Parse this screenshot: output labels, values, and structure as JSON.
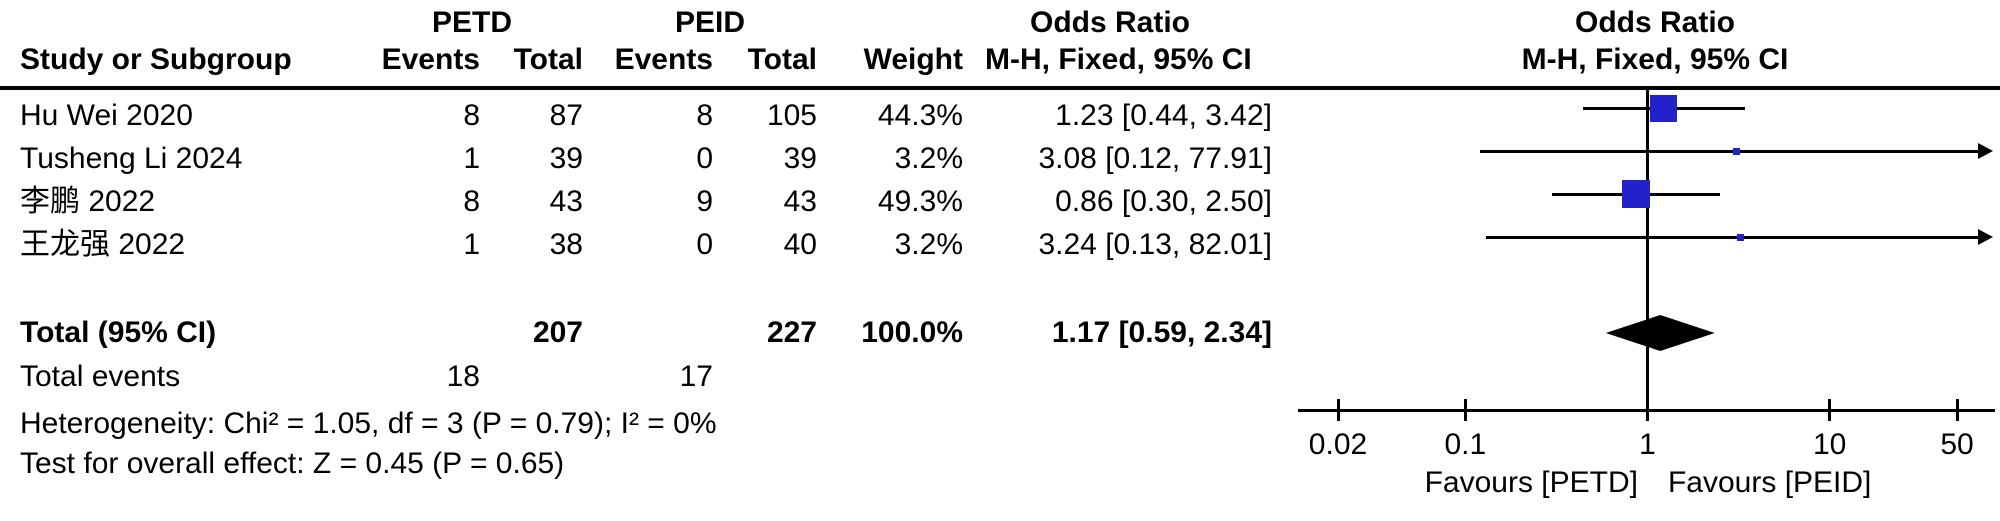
{
  "chart_data": {
    "type": "forest",
    "header": {
      "group1": "PETD",
      "group2": "PEID",
      "study_col": "Study or Subgroup",
      "events_col": "Events",
      "total_col": "Total",
      "weight_col": "Weight",
      "or_title": "Odds Ratio",
      "or_method": "M-H, Fixed, 95% CI",
      "plot_title": "Odds Ratio",
      "plot_method": "M-H, Fixed, 95% CI"
    },
    "studies": [
      {
        "name": "Hu Wei 2020",
        "petd_events": "8",
        "petd_total": "87",
        "peid_events": "8",
        "peid_total": "105",
        "weight": "44.3%",
        "or_text": "1.23 [0.44, 3.42]",
        "or": 1.23,
        "ci_low": 0.44,
        "ci_high": 3.42,
        "weight_pct": 44.3
      },
      {
        "name": "Tusheng Li 2024",
        "petd_events": "1",
        "petd_total": "39",
        "peid_events": "0",
        "peid_total": "39",
        "weight": "3.2%",
        "or_text": "3.08 [0.12, 77.91]",
        "or": 3.08,
        "ci_low": 0.12,
        "ci_high": 77.91,
        "weight_pct": 3.2
      },
      {
        "name": "李鹏 2022",
        "petd_events": "8",
        "petd_total": "43",
        "peid_events": "9",
        "peid_total": "43",
        "weight": "49.3%",
        "or_text": "0.86 [0.30, 2.50]",
        "or": 0.86,
        "ci_low": 0.3,
        "ci_high": 2.5,
        "weight_pct": 49.3
      },
      {
        "name": "王龙强 2022",
        "petd_events": "1",
        "petd_total": "38",
        "peid_events": "0",
        "peid_total": "40",
        "weight": "3.2%",
        "or_text": "3.24 [0.13, 82.01]",
        "or": 3.24,
        "ci_low": 0.13,
        "ci_high": 82.01,
        "weight_pct": 3.2
      }
    ],
    "total": {
      "label": "Total (95% CI)",
      "petd_total": "207",
      "peid_total": "227",
      "weight": "100.0%",
      "or_text": "1.17 [0.59, 2.34]",
      "or": 1.17,
      "ci_low": 0.59,
      "ci_high": 2.34
    },
    "total_events": {
      "label": "Total events",
      "petd": "18",
      "peid": "17"
    },
    "heterogeneity": "Heterogeneity: Chi² = 1.05, df = 3 (P = 0.79); I² = 0%",
    "overall_effect": "Test for overall effect: Z = 0.45 (P = 0.65)",
    "axis": {
      "scale": "log",
      "min": 0.02,
      "max": 50,
      "ticks": [
        "0.02",
        "0.1",
        "1",
        "10",
        "50"
      ],
      "tick_values": [
        0.02,
        0.1,
        1,
        10,
        50
      ],
      "null_value": 1
    },
    "favours_left": "Favours [PETD]",
    "favours_right": "Favours [PEID]",
    "colors": {
      "marker": "#2222CC",
      "line": "#000000",
      "diamond": "#000000",
      "text": "#000000"
    }
  }
}
